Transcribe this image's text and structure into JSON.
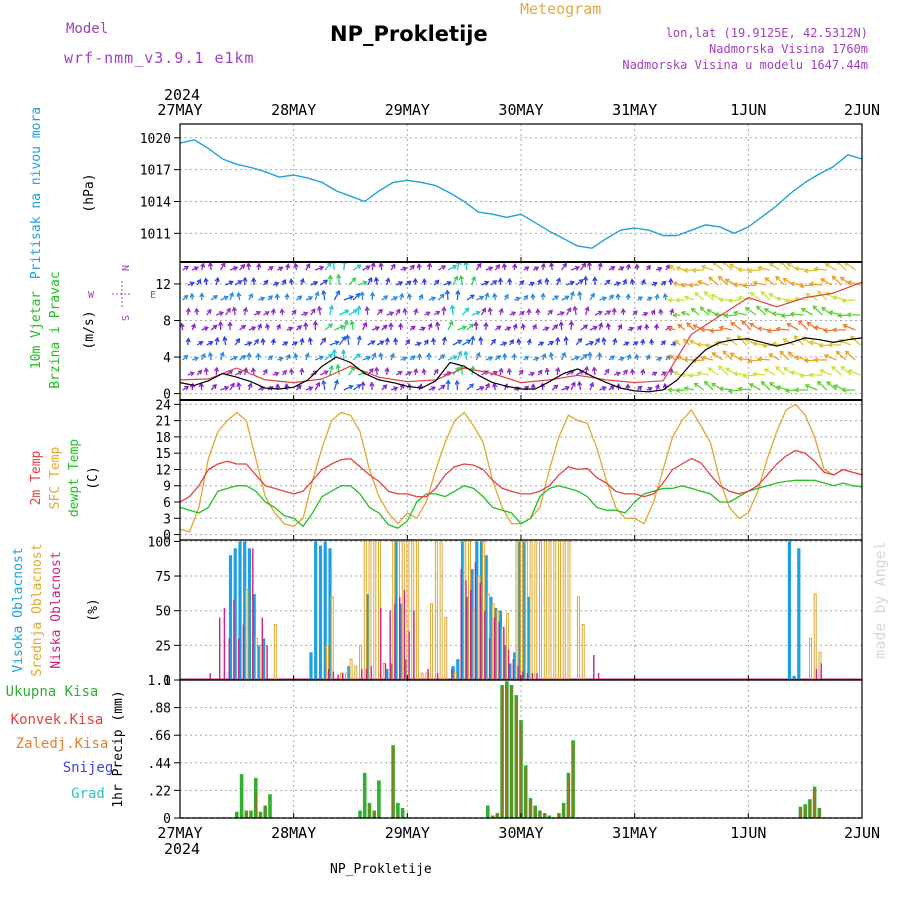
{
  "header": {
    "meteogram_label": "Meteogram",
    "title": "NP_Prokletije",
    "model_label": "Model",
    "model_name": "wrf-nmm_v3.9.1 e1km",
    "lonlat": "lon,lat (19.9125E, 42.5312N)",
    "altitude": "Nadmorska Visina 1760m",
    "model_altitude": "Nadmorska Visina u modelu 1647.44m"
  },
  "footer": {
    "station": "NP_Prokletije"
  },
  "watermark": "made by Angel",
  "time_axis": {
    "year": "2024",
    "day_labels": [
      "27MAY",
      "28MAY",
      "29MAY",
      "30MAY",
      "31MAY",
      "1JUN",
      "2JUN"
    ]
  },
  "colors": {
    "pressure": "#1ea0e0",
    "wind_speed": "#000000",
    "wind_gust": "#e04040",
    "temp_2m": "#e84040",
    "temp_sfc": "#e0a830",
    "dewpoint": "#22c022",
    "cloud_high": "#1ea0e0",
    "cloud_mid": "#e0a830",
    "cloud_low": "#d02080",
    "precip_total": "#30b030",
    "precip_conv": "#e04040",
    "precip_frozen": "#e08030",
    "precip_snow": "#4040e0",
    "precip_hail": "#30c0c0"
  },
  "chart_data": [
    {
      "type": "line",
      "panel": "pressure",
      "labels": [
        "Pritisak na nivou mora",
        "(hPa)"
      ],
      "yticks": [
        1011,
        1014,
        1017,
        1020
      ],
      "ylim": [
        1008.3,
        1021.3
      ],
      "series": [
        {
          "name": "Pritisak na nivou mora",
          "x": [
            0,
            3,
            6,
            9,
            12,
            15,
            18,
            21,
            24,
            27,
            30,
            33,
            36,
            39,
            42,
            45,
            48,
            51,
            54,
            57,
            60,
            63,
            66,
            69,
            72,
            75,
            78,
            81,
            84,
            87,
            90,
            93,
            96,
            99,
            102,
            105,
            108,
            111,
            114,
            117,
            120,
            123,
            126,
            129,
            132,
            135,
            138,
            141,
            144
          ],
          "values": [
            1019.5,
            1019.8,
            1019,
            1018,
            1017.5,
            1017.2,
            1016.8,
            1016.3,
            1016.5,
            1016.2,
            1015.8,
            1015,
            1014.5,
            1014,
            1015,
            1015.8,
            1016,
            1015.8,
            1015.5,
            1014.8,
            1014,
            1013,
            1012.8,
            1012.5,
            1012.8,
            1012,
            1011.2,
            1010.5,
            1009.8,
            1009.6,
            1010.5,
            1011.3,
            1011.5,
            1011.3,
            1010.8,
            1010.8,
            1011.3,
            1011.8,
            1011.6,
            1011,
            1011.6,
            1012.6,
            1013.6,
            1014.8,
            1015.8,
            1016.6,
            1017.3,
            1018.4,
            1018
          ]
        }
      ]
    },
    {
      "type": "line",
      "panel": "wind",
      "labels": [
        "10m Vjetar",
        "Brzina i Pravac",
        "(m/s)"
      ],
      "compass": {
        "n": "N",
        "e": "E",
        "s": "S",
        "w": "W"
      },
      "yticks": [
        0,
        4,
        8,
        12
      ],
      "ylim": [
        -0.7,
        14.4
      ],
      "series": [
        {
          "name": "wind_speed",
          "x": [
            0,
            3,
            6,
            9,
            12,
            15,
            18,
            21,
            24,
            27,
            30,
            33,
            36,
            39,
            42,
            45,
            48,
            51,
            54,
            57,
            60,
            63,
            66,
            69,
            72,
            75,
            78,
            81,
            84,
            87,
            90,
            93,
            96,
            99,
            102,
            105,
            108,
            111,
            114,
            117,
            120,
            123,
            126,
            129,
            132,
            135,
            138,
            141,
            144
          ],
          "values": [
            1.2,
            0.9,
            1.4,
            2.2,
            1.8,
            1.3,
            0.6,
            0.5,
            0.7,
            1.5,
            3,
            4,
            3.4,
            2.2,
            1.5,
            1.2,
            0.8,
            0.6,
            1.4,
            3.4,
            3,
            2,
            1.2,
            0.8,
            0.5,
            0.5,
            1.3,
            2.2,
            2.7,
            1.9,
            1.2,
            0.6,
            0.3,
            0.2,
            0.4,
            1.5,
            3.3,
            4.8,
            5.6,
            5.9,
            6,
            5.6,
            5.2,
            5.6,
            6.1,
            5.9,
            5.6,
            5.9,
            6.1
          ]
        },
        {
          "name": "wind_gust",
          "x": [
            0,
            6,
            12,
            18,
            24,
            30,
            36,
            42,
            48,
            54,
            60,
            66,
            72,
            78,
            84,
            90,
            96,
            102,
            108,
            114,
            120,
            126,
            132,
            138,
            144
          ],
          "values": [
            1.5,
            1.6,
            2.8,
            1.5,
            1.2,
            1.6,
            3,
            1.8,
            1.3,
            1.5,
            2.8,
            2.2,
            1.2,
            1.5,
            2,
            1.5,
            1.2,
            1.4,
            6.5,
            8.5,
            10.5,
            9.5,
            10.5,
            11,
            12.2
          ]
        }
      ]
    },
    {
      "type": "line",
      "panel": "temperature",
      "labels": [
        "2m Temp",
        "SFC Temp",
        "dewpt Temp",
        "(C)"
      ],
      "yticks": [
        0,
        3,
        6,
        9,
        12,
        15,
        18,
        21,
        24
      ],
      "ylim": [
        -1,
        24.8
      ],
      "x": [
        0,
        2,
        4,
        6,
        8,
        10,
        12,
        14,
        16,
        18,
        20,
        22,
        24,
        26,
        28,
        30,
        32,
        34,
        36,
        38,
        40,
        42,
        44,
        46,
        48,
        50,
        52,
        54,
        56,
        58,
        60,
        62,
        64,
        66,
        68,
        70,
        72,
        74,
        76,
        78,
        80,
        82,
        84,
        86,
        88,
        90,
        92,
        94,
        96,
        98,
        100,
        102,
        104,
        106,
        108,
        110,
        112,
        114,
        116,
        118,
        120,
        122,
        124,
        126,
        128,
        130,
        132,
        134,
        136,
        138,
        140,
        142,
        144
      ],
      "series": [
        {
          "name": "2m Temp",
          "values": [
            6,
            7,
            9,
            12,
            13,
            13.5,
            13,
            13,
            11,
            9,
            8.5,
            8,
            7.5,
            8,
            10,
            12,
            13,
            13.8,
            14,
            12.5,
            11,
            9.8,
            8,
            7.5,
            7.5,
            7,
            7,
            8.5,
            11,
            12.5,
            13,
            12.8,
            12,
            10,
            8.5,
            8,
            7.5,
            7.5,
            8,
            9,
            11,
            12.5,
            12,
            12.2,
            10.5,
            9.5,
            8,
            7.5,
            7.5,
            7,
            7.5,
            9.5,
            12,
            13,
            14,
            13.2,
            11,
            9,
            8,
            7.5,
            8,
            9,
            11,
            13,
            14.5,
            15.5,
            15,
            13.5,
            11.5,
            11,
            12,
            11.5,
            11
          ]
        },
        {
          "name": "SFC Temp",
          "values": [
            1,
            0.5,
            5,
            14,
            19,
            21,
            22.5,
            21,
            14,
            7,
            4,
            2,
            1.5,
            3,
            10,
            16,
            21,
            22.5,
            22,
            19,
            12,
            7,
            4,
            2,
            4,
            3,
            6,
            12,
            17,
            21,
            22.5,
            20,
            17,
            10,
            5,
            2,
            2,
            3,
            5,
            12,
            18,
            22,
            21,
            20.5,
            16,
            10,
            5,
            3,
            3,
            2,
            6,
            12,
            18,
            21,
            23,
            20,
            17,
            10,
            5,
            3,
            4,
            8,
            14,
            19,
            23,
            24,
            22,
            18,
            12,
            11,
            12,
            11.5,
            11
          ]
        },
        {
          "name": "dewpt Temp",
          "values": [
            5,
            4.5,
            4,
            5,
            8,
            8.5,
            9,
            9,
            8,
            6,
            5,
            3.5,
            3,
            1.5,
            4,
            7,
            8,
            9,
            9,
            7.5,
            5,
            4,
            1.8,
            1.2,
            2.5,
            6,
            7.5,
            7.5,
            7,
            8,
            9,
            8.5,
            7,
            5,
            4.5,
            4,
            2,
            3,
            7,
            8.5,
            9,
            8.5,
            8,
            7,
            5,
            4.5,
            4.5,
            4,
            6,
            7.5,
            8,
            8.5,
            8.5,
            9,
            8.5,
            8,
            7.5,
            6,
            6,
            7,
            8,
            8.5,
            9,
            9.5,
            9.8,
            10,
            10,
            10,
            9.5,
            9,
            9.5,
            9,
            8.8
          ]
        }
      ]
    },
    {
      "type": "bar",
      "panel": "clouds",
      "labels": [
        "Visoka Oblacnost",
        "Srednja Oblacnost",
        "Niska Oblacnost",
        "(%)"
      ],
      "yticks": [
        0,
        25,
        50,
        75,
        100
      ],
      "ylim": [
        0,
        101
      ],
      "series": [
        {
          "name": "Visoka Oblacnost",
          "x": [
            11,
            12,
            13,
            14,
            15,
            16,
            17,
            18,
            28,
            29,
            30,
            31,
            32,
            36,
            40,
            44,
            45,
            46,
            47,
            48,
            58,
            59,
            60,
            61,
            62,
            63,
            64,
            65,
            66,
            67,
            68,
            69,
            70,
            71,
            72,
            73,
            74,
            129,
            130,
            131
          ],
          "values": [
            90,
            95,
            100,
            100,
            95,
            62,
            25,
            30,
            20,
            100,
            97,
            100,
            95,
            10,
            62,
            8,
            12,
            100,
            55,
            15,
            10,
            15,
            100,
            60,
            80,
            100,
            100,
            90,
            60,
            52,
            50,
            25,
            12,
            20,
            100,
            100,
            60,
            100,
            3,
            95
          ]
        },
        {
          "name": "Srednja Oblacnost",
          "x": [
            14,
            16,
            17,
            20,
            31,
            32,
            34,
            35,
            36,
            37,
            38,
            39,
            40,
            41,
            42,
            43,
            45,
            46,
            47,
            48,
            49,
            50,
            51,
            52,
            53,
            54,
            55,
            56,
            58,
            60,
            61,
            62,
            63,
            64,
            65,
            66,
            67,
            68,
            69,
            71,
            72,
            73,
            74,
            75,
            76,
            77,
            78,
            79,
            80,
            81,
            82,
            84,
            85,
            133,
            134,
            135
          ],
          "values": [
            65,
            30,
            25,
            40,
            25,
            60,
            5,
            5,
            15,
            10,
            25,
            100,
            100,
            100,
            100,
            12,
            100,
            100,
            100,
            100,
            100,
            100,
            5,
            5,
            55,
            100,
            100,
            45,
            5,
            100,
            100,
            50,
            75,
            100,
            62,
            55,
            50,
            38,
            48,
            100,
            100,
            100,
            100,
            100,
            100,
            100,
            100,
            100,
            100,
            100,
            100,
            60,
            40,
            30,
            62,
            20
          ]
        },
        {
          "name": "Niska Oblacnost",
          "x": [
            6,
            8,
            9,
            10,
            11,
            12,
            13,
            15,
            17,
            18,
            31,
            32,
            33,
            34,
            38,
            39,
            40,
            42,
            43,
            44,
            45,
            46,
            47,
            48,
            49,
            52,
            54,
            57,
            59,
            60,
            61,
            62,
            63,
            64,
            65,
            66,
            67,
            68,
            69,
            70,
            71,
            72,
            73,
            74,
            75,
            87,
            88,
            134,
            135
          ],
          "values": [
            5,
            45,
            52,
            30,
            58,
            30,
            40,
            95,
            45,
            25,
            8,
            6,
            4,
            5,
            8,
            8,
            10,
            52,
            12,
            50,
            55,
            60,
            65,
            35,
            50,
            8,
            5,
            8,
            80,
            72,
            65,
            85,
            70,
            50,
            30,
            45,
            42,
            38,
            22,
            15,
            10,
            6,
            5,
            5,
            5,
            18,
            5,
            8,
            12
          ]
        }
      ]
    },
    {
      "type": "bar",
      "panel": "precip",
      "labels": [
        "Ukupna Kisa",
        "Konvek.Kisa",
        "Zaledj.Kisa",
        "Snijeg",
        "Grad",
        "1hr Precip (mm)"
      ],
      "yticks": [
        0,
        0.22,
        0.44,
        0.66,
        0.88,
        1.1
      ],
      "ylim": [
        0,
        1.1
      ],
      "series": [
        {
          "name": "Ukupna Kisa",
          "x": [
            12,
            13,
            14,
            15,
            16,
            17,
            18,
            19,
            38,
            39,
            40,
            41,
            42,
            45,
            46,
            47,
            65,
            66,
            67,
            68,
            69,
            70,
            71,
            72,
            73,
            74,
            75,
            76,
            77,
            78,
            80,
            81,
            82,
            83,
            131,
            132,
            133,
            134,
            135
          ],
          "values": [
            0.05,
            0.35,
            0.06,
            0.06,
            0.32,
            0.05,
            0.1,
            0.19,
            0.06,
            0.36,
            0.12,
            0.06,
            0.3,
            0.58,
            0.12,
            0.08,
            0.1,
            0.02,
            0.04,
            1.06,
            1.09,
            1.06,
            0.98,
            0.78,
            0.42,
            0.16,
            0.1,
            0.06,
            0.04,
            0.02,
            0.04,
            0.12,
            0.36,
            0.62,
            0.09,
            0.11,
            0.15,
            0.25,
            0.08
          ]
        },
        {
          "name": "Konvek.Kisa",
          "x": [
            14,
            16,
            18,
            40,
            41,
            45,
            46,
            66,
            67,
            68,
            69,
            70,
            71,
            72,
            73,
            74,
            75,
            76,
            77,
            80,
            81,
            82,
            83,
            131,
            132,
            133,
            134,
            135
          ],
          "values": [
            0.05,
            0.2,
            0.1,
            0.1,
            0.05,
            0.56,
            0.04,
            0.02,
            0.03,
            1.04,
            1.06,
            1.04,
            0.95,
            0.75,
            0.4,
            0.15,
            0.08,
            0.06,
            0.04,
            0.04,
            0.1,
            0.33,
            0.6,
            0.08,
            0.09,
            0.13,
            0.23,
            0.07
          ]
        },
        {
          "name": "Zaledj.Kisa",
          "x": [],
          "values": []
        },
        {
          "name": "Snijeg",
          "x": [],
          "values": []
        },
        {
          "name": "Grad",
          "x": [],
          "values": []
        }
      ]
    }
  ]
}
